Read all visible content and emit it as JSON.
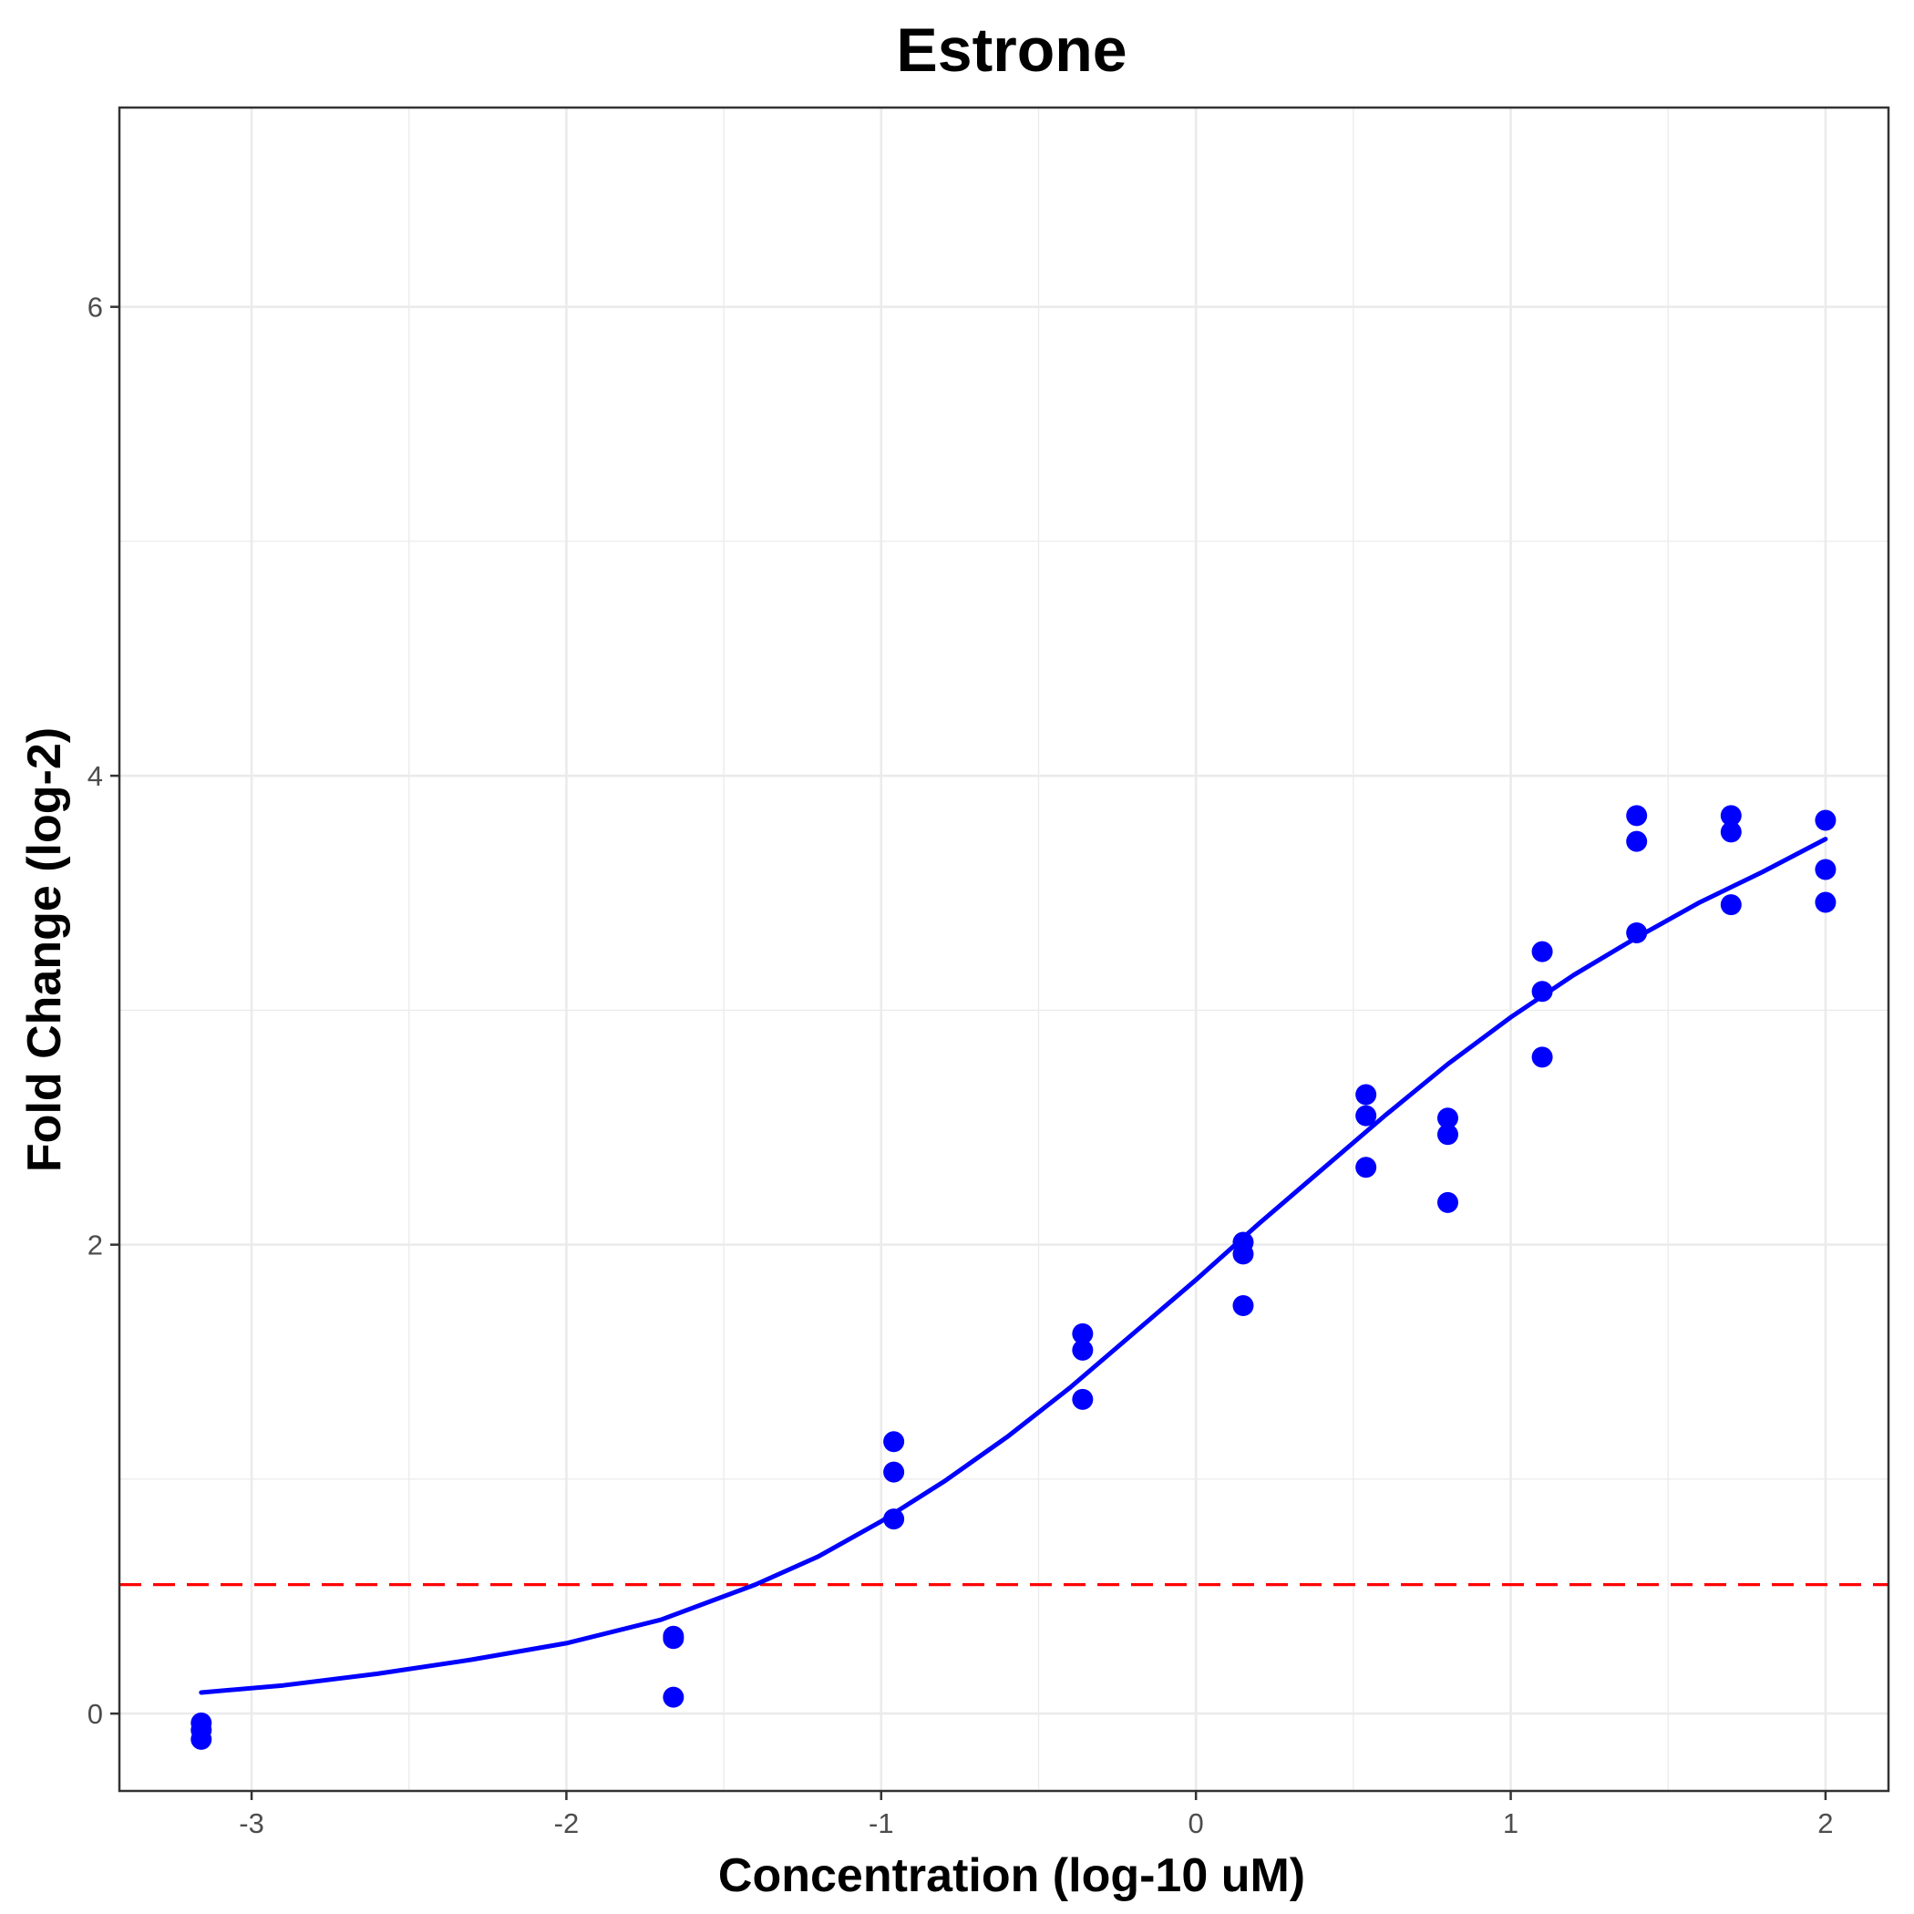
{
  "chart_data": {
    "type": "scatter",
    "title": "Estrone",
    "xlabel": "Concentration (log-10 uM)",
    "ylabel": "Fold Change (log-2)",
    "xlim": [
      -3.42,
      2.2
    ],
    "ylim": [
      -0.33,
      6.85
    ],
    "x_ticks": [
      -3,
      -2,
      -1,
      0,
      1,
      2
    ],
    "x_tick_labels": [
      "-3",
      "-2",
      "-1",
      "0",
      "1",
      "2"
    ],
    "y_ticks": [
      0,
      2,
      4,
      6
    ],
    "y_tick_labels": [
      "0",
      "2",
      "4",
      "6"
    ],
    "grid": true,
    "series": [
      {
        "kind": "points",
        "color": "#0000ff",
        "points": [
          [
            -3.16,
            -0.04
          ],
          [
            -3.16,
            -0.07
          ],
          [
            -3.16,
            -0.11
          ],
          [
            -1.66,
            0.33
          ],
          [
            -1.66,
            0.32
          ],
          [
            -1.66,
            0.07
          ],
          [
            -0.96,
            1.16
          ],
          [
            -0.96,
            1.03
          ],
          [
            -0.96,
            0.83
          ],
          [
            -0.36,
            1.62
          ],
          [
            -0.36,
            1.55
          ],
          [
            -0.36,
            1.34
          ],
          [
            0.15,
            2.01
          ],
          [
            0.15,
            1.96
          ],
          [
            0.15,
            1.74
          ],
          [
            0.54,
            2.64
          ],
          [
            0.54,
            2.55
          ],
          [
            0.54,
            2.33
          ],
          [
            0.8,
            2.54
          ],
          [
            0.8,
            2.47
          ],
          [
            0.8,
            2.18
          ],
          [
            1.1,
            3.25
          ],
          [
            1.1,
            3.08
          ],
          [
            1.1,
            2.8
          ],
          [
            1.4,
            3.83
          ],
          [
            1.4,
            3.72
          ],
          [
            1.4,
            3.33
          ],
          [
            1.7,
            3.83
          ],
          [
            1.7,
            3.76
          ],
          [
            1.7,
            3.45
          ],
          [
            2.0,
            3.81
          ],
          [
            2.0,
            3.6
          ],
          [
            2.0,
            3.46
          ]
        ]
      },
      {
        "kind": "fit-curve",
        "color": "#0000ff",
        "points": [
          [
            -3.16,
            0.09
          ],
          [
            -2.9,
            0.12
          ],
          [
            -2.6,
            0.17
          ],
          [
            -2.3,
            0.23
          ],
          [
            -2.0,
            0.3
          ],
          [
            -1.7,
            0.4
          ],
          [
            -1.4,
            0.55
          ],
          [
            -1.2,
            0.67
          ],
          [
            -1.0,
            0.82
          ],
          [
            -0.8,
            0.99
          ],
          [
            -0.6,
            1.18
          ],
          [
            -0.4,
            1.39
          ],
          [
            -0.2,
            1.62
          ],
          [
            0.0,
            1.85
          ],
          [
            0.2,
            2.09
          ],
          [
            0.4,
            2.32
          ],
          [
            0.6,
            2.55
          ],
          [
            0.8,
            2.77
          ],
          [
            1.0,
            2.97
          ],
          [
            1.2,
            3.15
          ],
          [
            1.4,
            3.31
          ],
          [
            1.6,
            3.46
          ],
          [
            1.8,
            3.59
          ],
          [
            2.0,
            3.73
          ]
        ]
      },
      {
        "kind": "threshold-line",
        "color": "#ff0000",
        "y": 0.55
      }
    ]
  }
}
